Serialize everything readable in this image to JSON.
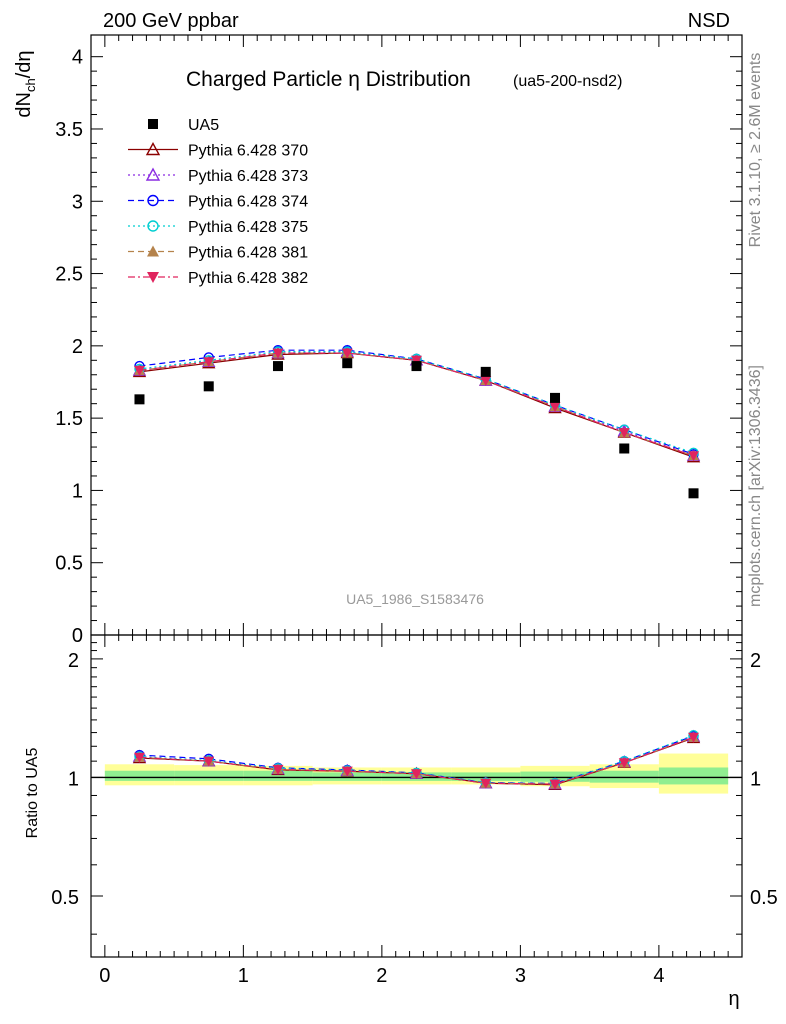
{
  "header": {
    "energy_label": "200 GeV ppbar",
    "process_label": "NSD"
  },
  "side_text": {
    "rivet": "Rivet 3.1.10, ≥ 2.6M events",
    "mcplots": "mcplots.cern.ch [arXiv:1306.3436]"
  },
  "chart_data": [
    {
      "type": "scatter",
      "title": "Charged Particle η Distribution",
      "subtitle": "(ua5-200-nsd2)",
      "ylabel": "dN_ch/dη",
      "watermark": "UA5_1986_S1583476",
      "xlim": [
        -0.1,
        4.6
      ],
      "ylim": [
        0,
        4.15
      ],
      "yticks": [
        0,
        0.5,
        1,
        1.5,
        2,
        2.5,
        3,
        3.5,
        4
      ],
      "ytick_labels": [
        "0",
        "0.5",
        "1",
        "1.5",
        "2",
        "2.5",
        "3",
        "3.5",
        "4"
      ],
      "legend_position": "top-left",
      "x": [
        0.25,
        0.75,
        1.25,
        1.75,
        2.25,
        2.75,
        3.25,
        3.75,
        4.25
      ],
      "series": [
        {
          "name": "UA5",
          "color": "#000000",
          "marker": "square",
          "line": "none",
          "values": [
            1.63,
            1.72,
            1.86,
            1.88,
            1.86,
            1.82,
            1.64,
            1.29,
            0.98
          ]
        },
        {
          "name": "Pythia 6.428 370",
          "color": "#8b0000",
          "marker": "triangle-open",
          "line": "solid",
          "values": [
            1.82,
            1.88,
            1.94,
            1.95,
            1.9,
            1.76,
            1.57,
            1.4,
            1.23
          ]
        },
        {
          "name": "Pythia 6.428 373",
          "color": "#8a2be2",
          "marker": "triangle-open",
          "line": "dotted",
          "values": [
            1.83,
            1.89,
            1.95,
            1.96,
            1.9,
            1.76,
            1.58,
            1.41,
            1.24
          ]
        },
        {
          "name": "Pythia 6.428 374",
          "color": "#0000ff",
          "marker": "circle-open",
          "line": "dashed",
          "values": [
            1.86,
            1.92,
            1.97,
            1.97,
            1.91,
            1.77,
            1.59,
            1.42,
            1.25
          ]
        },
        {
          "name": "Pythia 6.428 375",
          "color": "#00ced1",
          "marker": "circle-open",
          "line": "dotted",
          "values": [
            1.84,
            1.9,
            1.96,
            1.96,
            1.91,
            1.77,
            1.59,
            1.42,
            1.26
          ]
        },
        {
          "name": "Pythia 6.428 381",
          "color": "#b5834c",
          "marker": "triangle",
          "line": "dashed",
          "values": [
            1.83,
            1.89,
            1.95,
            1.95,
            1.9,
            1.76,
            1.58,
            1.4,
            1.24
          ]
        },
        {
          "name": "Pythia 6.428 382",
          "color": "#e0245e",
          "marker": "triangle-down",
          "line": "dashdot",
          "values": [
            1.83,
            1.89,
            1.95,
            1.95,
            1.9,
            1.76,
            1.58,
            1.4,
            1.24
          ]
        }
      ]
    },
    {
      "type": "scatter",
      "ylabel": "Ratio to UA5",
      "xlabel": "η",
      "xlim": [
        -0.1,
        4.6
      ],
      "ylim": [
        0.35,
        2.3
      ],
      "log_y": true,
      "yticks": [
        0.5,
        1,
        2
      ],
      "ytick_labels": [
        "0.5",
        "1",
        "2"
      ],
      "xticks": [
        0,
        1,
        2,
        3,
        4
      ],
      "xtick_labels": [
        "0",
        "1",
        "2",
        "3",
        "4"
      ],
      "bands": [
        {
          "x_from": 0.0,
          "x_to": 0.5,
          "green": [
            0.98,
            1.04
          ],
          "yellow": [
            0.955,
            1.08
          ]
        },
        {
          "x_from": 0.5,
          "x_to": 1.0,
          "green": [
            0.98,
            1.04
          ],
          "yellow": [
            0.955,
            1.075
          ]
        },
        {
          "x_from": 1.0,
          "x_to": 1.5,
          "green": [
            0.98,
            1.04
          ],
          "yellow": [
            0.955,
            1.07
          ]
        },
        {
          "x_from": 1.5,
          "x_to": 2.0,
          "green": [
            0.98,
            1.03
          ],
          "yellow": [
            0.96,
            1.06
          ]
        },
        {
          "x_from": 2.0,
          "x_to": 2.5,
          "green": [
            0.98,
            1.03
          ],
          "yellow": [
            0.96,
            1.06
          ]
        },
        {
          "x_from": 2.5,
          "x_to": 3.0,
          "green": [
            0.98,
            1.03
          ],
          "yellow": [
            0.96,
            1.06
          ]
        },
        {
          "x_from": 3.0,
          "x_to": 3.5,
          "green": [
            0.975,
            1.035
          ],
          "yellow": [
            0.95,
            1.07
          ]
        },
        {
          "x_from": 3.5,
          "x_to": 4.0,
          "green": [
            0.97,
            1.04
          ],
          "yellow": [
            0.94,
            1.08
          ]
        },
        {
          "x_from": 4.0,
          "x_to": 4.5,
          "green": [
            0.96,
            1.06
          ],
          "yellow": [
            0.91,
            1.15
          ]
        }
      ],
      "x": [
        0.25,
        0.75,
        1.25,
        1.75,
        2.25,
        2.75,
        3.25,
        3.75,
        4.25
      ],
      "series": [
        {
          "name": "Pythia 6.428 370",
          "color": "#8b0000",
          "marker": "triangle-open",
          "line": "solid",
          "values": [
            1.12,
            1.1,
            1.045,
            1.037,
            1.022,
            0.967,
            0.958,
            1.09,
            1.26
          ]
        },
        {
          "name": "Pythia 6.428 373",
          "color": "#8a2be2",
          "marker": "triangle-open",
          "line": "dotted",
          "values": [
            1.13,
            1.1,
            1.05,
            1.04,
            1.022,
            0.967,
            0.962,
            1.095,
            1.27
          ]
        },
        {
          "name": "Pythia 6.428 374",
          "color": "#0000ff",
          "marker": "circle-open",
          "line": "dashed",
          "values": [
            1.14,
            1.115,
            1.058,
            1.045,
            1.027,
            0.97,
            0.966,
            1.1,
            1.275
          ]
        },
        {
          "name": "Pythia 6.428 375",
          "color": "#00ced1",
          "marker": "circle-open",
          "line": "dotted",
          "values": [
            1.13,
            1.105,
            1.055,
            1.042,
            1.027,
            0.97,
            0.966,
            1.1,
            1.28
          ]
        },
        {
          "name": "Pythia 6.428 381",
          "color": "#b5834c",
          "marker": "triangle",
          "line": "dashed",
          "values": [
            1.125,
            1.1,
            1.048,
            1.038,
            1.022,
            0.967,
            0.962,
            1.09,
            1.265
          ]
        },
        {
          "name": "Pythia 6.428 382",
          "color": "#e0245e",
          "marker": "triangle-down",
          "line": "dashdot",
          "values": [
            1.125,
            1.1,
            1.048,
            1.038,
            1.022,
            0.967,
            0.962,
            1.09,
            1.265
          ]
        }
      ]
    }
  ],
  "colors": {
    "band_yellow": "#ffff99",
    "band_green": "#90ee90",
    "axis": "#000000",
    "watermark": "#999999",
    "side_text": "#888888"
  }
}
